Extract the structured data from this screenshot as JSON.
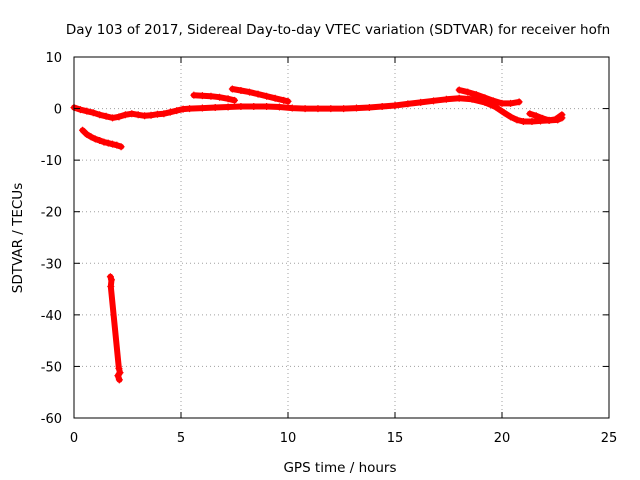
{
  "chart_data": {
    "type": "scatter",
    "title": "Day 103 of 2017, Sidereal Day-to-day VTEC variation (SDTVAR) for receiver hofn",
    "xlabel": "GPS time / hours",
    "ylabel": "SDTVAR / TECUs",
    "xlim": [
      0,
      25
    ],
    "ylim": [
      -60,
      10
    ],
    "xticks": [
      0,
      5,
      10,
      15,
      20,
      25
    ],
    "yticks": [
      10,
      0,
      -10,
      -20,
      -30,
      -40,
      -50,
      -60
    ],
    "xtick_labels": [
      "0",
      "5",
      "10",
      "15",
      "20",
      "25"
    ],
    "ytick_labels": [
      "10",
      "0",
      "-10",
      "-20",
      "-30",
      "-40",
      "-50",
      "-60"
    ],
    "grid": true,
    "marker": "+",
    "series": [
      {
        "name": "main-arc",
        "color": "#ff0000",
        "points": [
          [
            0.0,
            0.2
          ],
          [
            0.3,
            -0.2
          ],
          [
            0.6,
            -0.5
          ],
          [
            0.9,
            -0.8
          ],
          [
            1.2,
            -1.2
          ],
          [
            1.5,
            -1.5
          ],
          [
            1.8,
            -1.8
          ],
          [
            2.1,
            -1.6
          ],
          [
            2.4,
            -1.2
          ],
          [
            2.7,
            -1.0
          ],
          [
            3.0,
            -1.2
          ],
          [
            3.3,
            -1.4
          ],
          [
            3.6,
            -1.3
          ],
          [
            3.9,
            -1.1
          ],
          [
            4.2,
            -1.0
          ],
          [
            4.5,
            -0.7
          ],
          [
            4.8,
            -0.4
          ],
          [
            5.1,
            -0.1
          ],
          [
            5.4,
            0.0
          ],
          [
            6.0,
            0.1
          ],
          [
            6.6,
            0.2
          ],
          [
            7.2,
            0.3
          ],
          [
            7.8,
            0.4
          ],
          [
            8.4,
            0.4
          ],
          [
            9.0,
            0.4
          ],
          [
            9.6,
            0.3
          ],
          [
            10.2,
            0.1
          ],
          [
            10.8,
            0.0
          ],
          [
            11.4,
            0.0
          ],
          [
            12.0,
            0.0
          ],
          [
            12.6,
            0.0
          ],
          [
            13.2,
            0.1
          ],
          [
            13.8,
            0.2
          ],
          [
            14.4,
            0.4
          ],
          [
            15.0,
            0.6
          ],
          [
            15.6,
            0.9
          ],
          [
            16.2,
            1.2
          ],
          [
            16.8,
            1.5
          ],
          [
            17.4,
            1.8
          ],
          [
            18.0,
            2.0
          ],
          [
            18.6,
            1.8
          ],
          [
            19.2,
            1.2
          ],
          [
            19.7,
            0.3
          ],
          [
            20.1,
            -0.8
          ],
          [
            20.4,
            -1.6
          ],
          [
            20.7,
            -2.2
          ],
          [
            21.0,
            -2.5
          ],
          [
            21.4,
            -2.5
          ],
          [
            21.8,
            -2.4
          ],
          [
            22.2,
            -2.3
          ],
          [
            22.6,
            -2.2
          ],
          [
            22.8,
            -1.8
          ]
        ]
      },
      {
        "name": "descending-arc",
        "color": "#ff0000",
        "points": [
          [
            0.4,
            -4.2
          ],
          [
            0.6,
            -5.0
          ],
          [
            0.8,
            -5.5
          ],
          [
            1.0,
            -5.9
          ],
          [
            1.2,
            -6.2
          ],
          [
            1.4,
            -6.5
          ],
          [
            1.6,
            -6.7
          ],
          [
            1.8,
            -6.9
          ],
          [
            2.0,
            -7.1
          ],
          [
            2.2,
            -7.4
          ]
        ]
      },
      {
        "name": "upper-arc-1",
        "color": "#ff0000",
        "points": [
          [
            5.6,
            2.6
          ],
          [
            6.0,
            2.5
          ],
          [
            6.4,
            2.4
          ],
          [
            6.8,
            2.2
          ],
          [
            7.2,
            1.9
          ],
          [
            7.5,
            1.6
          ]
        ]
      },
      {
        "name": "upper-arc-2",
        "color": "#ff0000",
        "points": [
          [
            7.4,
            3.8
          ],
          [
            7.8,
            3.5
          ],
          [
            8.2,
            3.2
          ],
          [
            8.6,
            2.8
          ],
          [
            9.0,
            2.4
          ],
          [
            9.4,
            2.0
          ],
          [
            9.8,
            1.6
          ],
          [
            10.0,
            1.4
          ]
        ]
      },
      {
        "name": "upper-arc-3",
        "color": "#ff0000",
        "points": [
          [
            18.0,
            3.6
          ],
          [
            18.4,
            3.2
          ],
          [
            18.8,
            2.7
          ],
          [
            19.2,
            2.1
          ],
          [
            19.6,
            1.5
          ],
          [
            20.0,
            1.0
          ],
          [
            20.4,
            1.0
          ],
          [
            20.8,
            1.3
          ]
        ]
      },
      {
        "name": "end-arc",
        "color": "#ff0000",
        "points": [
          [
            21.3,
            -1.0
          ],
          [
            21.6,
            -1.4
          ],
          [
            21.9,
            -1.9
          ],
          [
            22.2,
            -2.3
          ],
          [
            22.5,
            -2.1
          ],
          [
            22.8,
            -1.2
          ]
        ]
      },
      {
        "name": "outliers",
        "color": "#ff0000",
        "points": [
          [
            1.7,
            -32.6
          ],
          [
            1.75,
            -33.2
          ],
          [
            1.72,
            -34.5
          ],
          [
            2.1,
            -50.4
          ],
          [
            2.15,
            -51.2
          ],
          [
            2.05,
            -51.8
          ],
          [
            2.12,
            -52.6
          ]
        ]
      }
    ]
  }
}
